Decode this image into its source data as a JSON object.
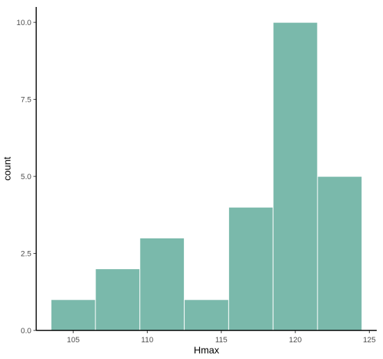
{
  "chart_data": {
    "type": "bar",
    "xlabel": "Hmax",
    "ylabel": "count",
    "xlim": [
      102.5,
      125.5
    ],
    "ylim": [
      0,
      10.5
    ],
    "x_ticks": [
      105,
      110,
      115,
      120,
      125
    ],
    "x_tick_labels": [
      "105",
      "110",
      "115",
      "120",
      "125"
    ],
    "y_ticks": [
      0,
      2.5,
      5,
      7.5,
      10
    ],
    "y_tick_labels": [
      "0.0",
      "2.5",
      "5.0",
      "7.5",
      "10.0"
    ],
    "bins": [
      {
        "x_start": 103.5,
        "x_end": 106.5,
        "count": 1
      },
      {
        "x_start": 106.5,
        "x_end": 109.5,
        "count": 2
      },
      {
        "x_start": 109.5,
        "x_end": 112.5,
        "count": 3
      },
      {
        "x_start": 112.5,
        "x_end": 115.5,
        "count": 1
      },
      {
        "x_start": 115.5,
        "x_end": 118.5,
        "count": 4
      },
      {
        "x_start": 118.5,
        "x_end": 121.5,
        "count": 10
      },
      {
        "x_start": 121.5,
        "x_end": 124.5,
        "count": 5
      }
    ],
    "bar_color": "#7ab9ab",
    "bar_edge_color": "#ffffff",
    "grid": false,
    "legend": "none"
  }
}
